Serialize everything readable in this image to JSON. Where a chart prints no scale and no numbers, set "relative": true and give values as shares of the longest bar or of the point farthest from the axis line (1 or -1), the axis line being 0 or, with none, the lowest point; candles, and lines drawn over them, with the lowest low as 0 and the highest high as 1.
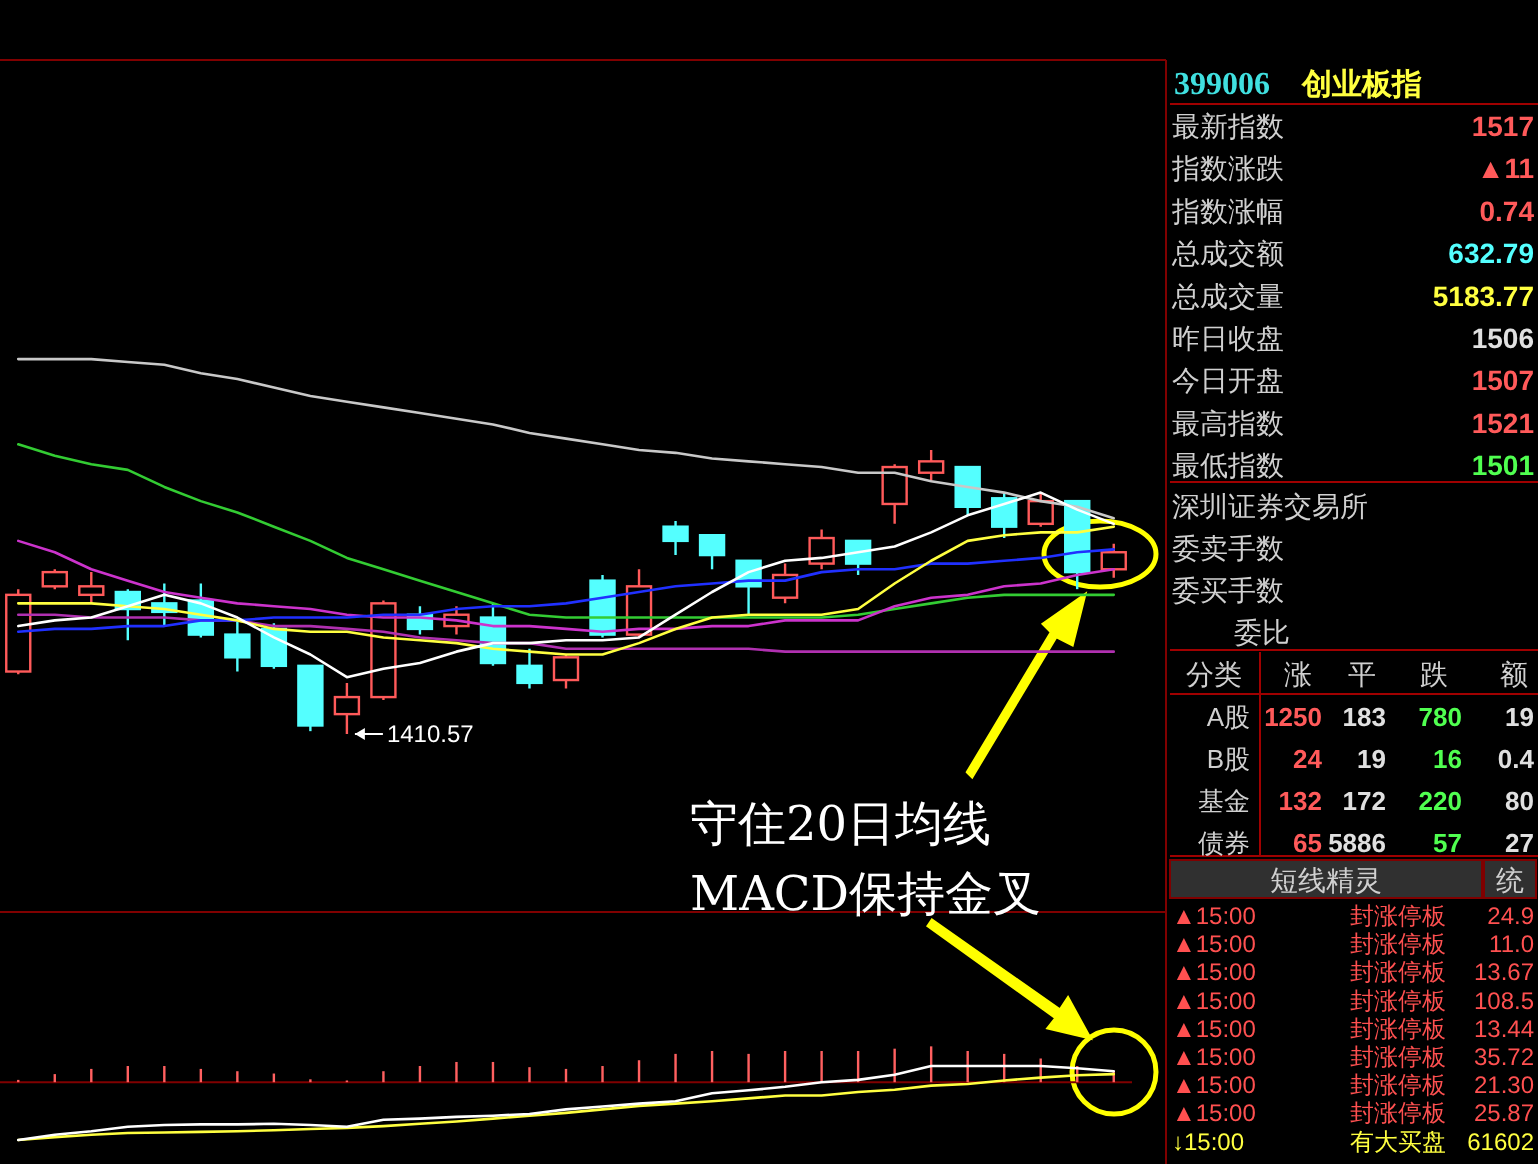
{
  "chart_data": [
    {
      "type": "candlestick",
      "relative": true,
      "categories": [
        null,
        null,
        null,
        null,
        null,
        null,
        null,
        null,
        null,
        null,
        null,
        null,
        null,
        null,
        null,
        null,
        null,
        null,
        null,
        null,
        null,
        null,
        null,
        null,
        null,
        null,
        null,
        null,
        null,
        null,
        null
      ],
      "ohlc": [
        [
          0.22,
          0.51,
          0.21,
          0.49
        ],
        [
          0.52,
          0.58,
          0.51,
          0.57
        ],
        [
          0.49,
          0.57,
          0.46,
          0.52
        ],
        [
          0.5,
          0.51,
          0.33,
          0.44
        ],
        [
          0.46,
          0.53,
          0.38,
          0.43
        ],
        [
          0.47,
          0.53,
          0.34,
          0.35
        ],
        [
          0.35,
          0.4,
          0.22,
          0.27
        ],
        [
          0.37,
          0.39,
          0.23,
          0.24
        ],
        [
          0.24,
          0.24,
          0.01,
          0.03
        ],
        [
          0.07,
          0.18,
          0,
          0.13
        ],
        [
          0.13,
          0.47,
          0.12,
          0.46
        ],
        [
          0.42,
          0.45,
          0.35,
          0.37
        ],
        [
          0.38,
          0.45,
          0.35,
          0.42
        ],
        [
          0.41,
          0.46,
          0.24,
          0.25
        ],
        [
          0.24,
          0.3,
          0.16,
          0.18
        ],
        [
          0.19,
          0.28,
          0.16,
          0.27
        ],
        [
          0.54,
          0.56,
          0.34,
          0.35
        ],
        [
          0.35,
          0.58,
          0.34,
          0.52
        ],
        [
          0.73,
          0.75,
          0.63,
          0.68
        ],
        [
          0.7,
          0.7,
          0.58,
          0.63
        ],
        [
          0.61,
          0.61,
          0.42,
          0.52
        ],
        [
          0.48,
          0.6,
          0.46,
          0.56
        ],
        [
          0.6,
          0.72,
          0.58,
          0.69
        ],
        [
          0.68,
          0.68,
          0.56,
          0.6
        ],
        [
          0.81,
          0.95,
          0.74,
          0.94
        ],
        [
          0.92,
          1,
          0.89,
          0.96
        ],
        [
          0.94,
          0.94,
          0.77,
          0.8
        ],
        [
          0.83,
          0.85,
          0.69,
          0.73
        ],
        [
          0.74,
          0.85,
          0.73,
          0.82
        ],
        [
          0.82,
          0.82,
          0.51,
          0.57
        ],
        [
          0.58,
          0.67,
          0.55,
          0.64
        ]
      ],
      "series": [
        {
          "type": "line",
          "color": "#c8c8c8",
          "values": [
            1.32,
            1.32,
            1.32,
            1.31,
            1.3,
            1.27,
            1.25,
            1.22,
            1.19,
            1.17,
            1.15,
            1.13,
            1.11,
            1.09,
            1.06,
            1.04,
            1.02,
            1.0,
            0.99,
            0.97,
            0.96,
            0.95,
            0.94,
            0.92,
            0.92,
            0.89,
            0.87,
            0.85,
            0.82,
            0.8,
            0.76
          ]
        },
        {
          "type": "line",
          "color": "#33cc33",
          "values": [
            1.02,
            0.98,
            0.95,
            0.93,
            0.87,
            0.82,
            0.78,
            0.73,
            0.68,
            0.62,
            0.58,
            0.54,
            0.5,
            0.46,
            0.42,
            0.41,
            0.41,
            0.41,
            0.41,
            0.41,
            0.41,
            0.41,
            0.41,
            0.42,
            0.44,
            0.46,
            0.48,
            0.49,
            0.49,
            0.49,
            0.49
          ]
        },
        {
          "type": "line",
          "color": "#cc33cc",
          "values": [
            0.68,
            0.64,
            0.58,
            0.54,
            0.5,
            0.48,
            0.46,
            0.45,
            0.44,
            0.42,
            0.41,
            0.41,
            0.4,
            0.38,
            0.38,
            0.37,
            0.36,
            0.37,
            0.37,
            0.38,
            0.38,
            0.4,
            0.4,
            0.4,
            0.45,
            0.48,
            0.49,
            0.52,
            0.53,
            0.56,
            0.58
          ]
        },
        {
          "type": "line",
          "color": "#b030b0",
          "values": [
            0.42,
            0.42,
            0.41,
            0.41,
            0.41,
            0.4,
            0.4,
            0.38,
            0.38,
            0.37,
            0.36,
            0.34,
            0.33,
            0.32,
            0.32,
            0.3,
            0.3,
            0.3,
            0.3,
            0.3,
            0.3,
            0.29,
            0.29,
            0.29,
            0.29,
            0.29,
            0.29,
            0.29,
            0.29,
            0.29,
            0.29
          ]
        },
        {
          "type": "line",
          "color": "#2030ff",
          "values": [
            0.36,
            0.37,
            0.37,
            0.38,
            0.38,
            0.4,
            0.4,
            0.41,
            0.41,
            0.41,
            0.42,
            0.42,
            0.44,
            0.45,
            0.45,
            0.46,
            0.48,
            0.5,
            0.52,
            0.53,
            0.54,
            0.54,
            0.57,
            0.58,
            0.58,
            0.6,
            0.6,
            0.61,
            0.62,
            0.64,
            0.65
          ]
        },
        {
          "type": "line",
          "color": "#ffff40",
          "values": [
            0.46,
            0.46,
            0.46,
            0.45,
            0.44,
            0.42,
            0.4,
            0.37,
            0.36,
            0.36,
            0.34,
            0.33,
            0.32,
            0.3,
            0.29,
            0.28,
            0.28,
            0.32,
            0.37,
            0.41,
            0.42,
            0.42,
            0.42,
            0.44,
            0.53,
            0.61,
            0.68,
            0.7,
            0.71,
            0.71,
            0.73
          ]
        },
        {
          "type": "line",
          "color": "#ffffff",
          "values": [
            0.38,
            0.4,
            0.41,
            0.45,
            0.49,
            0.46,
            0.41,
            0.34,
            0.28,
            0.2,
            0.23,
            0.25,
            0.29,
            0.32,
            0.32,
            0.33,
            0.33,
            0.34,
            0.42,
            0.5,
            0.57,
            0.61,
            0.62,
            0.64,
            0.66,
            0.71,
            0.77,
            0.81,
            0.85,
            0.79,
            0.74
          ]
        }
      ],
      "annotations": [
        "1410.57",
        "守住20日均线"
      ]
    },
    {
      "type": "line",
      "relative": true,
      "categories": [
        null,
        null,
        null,
        null,
        null,
        null,
        null,
        null,
        null,
        null,
        null,
        null,
        null,
        null,
        null,
        null,
        null,
        null,
        null,
        null,
        null,
        null,
        null,
        null,
        null,
        null,
        null,
        null,
        null,
        null,
        null
      ],
      "series": [
        {
          "type": "bar",
          "color": "#ff6060",
          "values": [
            0.04,
            0.14,
            0.23,
            0.28,
            0.28,
            0.23,
            0.19,
            0.15,
            0.05,
            0.03,
            0.19,
            0.28,
            0.35,
            0.35,
            0.26,
            0.23,
            0.28,
            0.38,
            0.49,
            0.54,
            0.49,
            0.54,
            0.54,
            0.54,
            0.58,
            0.62,
            0.54,
            0.49,
            0.41,
            0.28,
            0.19
          ]
        },
        {
          "type": "line",
          "color": "#ffff40",
          "values": [
            -1.0,
            -0.95,
            -0.91,
            -0.88,
            -0.87,
            -0.86,
            -0.85,
            -0.83,
            -0.81,
            -0.79,
            -0.76,
            -0.72,
            -0.68,
            -0.63,
            -0.58,
            -0.53,
            -0.47,
            -0.41,
            -0.37,
            -0.33,
            -0.28,
            -0.23,
            -0.23,
            -0.17,
            -0.13,
            -0.06,
            -0.03,
            0.03,
            0.08,
            0.12,
            0.14
          ]
        },
        {
          "type": "line",
          "color": "#ffffff",
          "values": [
            -1.0,
            -0.91,
            -0.85,
            -0.77,
            -0.74,
            -0.73,
            -0.73,
            -0.72,
            -0.74,
            -0.77,
            -0.65,
            -0.63,
            -0.6,
            -0.58,
            -0.55,
            -0.47,
            -0.42,
            -0.37,
            -0.33,
            -0.19,
            -0.14,
            -0.08,
            0,
            0.04,
            0.13,
            0.28,
            0.28,
            0.28,
            0.28,
            0.24,
            0.19
          ]
        }
      ],
      "ref_lines": [
        {
          "axis": "y",
          "value": 0,
          "color": "#800000"
        }
      ],
      "annotations": [
        "MACD保持金叉"
      ]
    },
    {
      "type": "other",
      "title": "399006",
      "subtitle": "创业板指",
      "categories": [
        "最新指数",
        "指数涨跌",
        "指数涨幅",
        "总成交额",
        "总成交量",
        "昨日收盘",
        "今日开盘",
        "最高指数",
        "最低指数",
        "深圳证券交易所",
        "委卖手数",
        "委买手数",
        "委比"
      ],
      "value_labels": [
        "1517",
        "▲11",
        "0.74",
        "632.79",
        "5183.77",
        "1506",
        "1507",
        "1521",
        "1501",
        null,
        null,
        null,
        null
      ],
      "annotations": [
        "分类",
        "涨",
        "平",
        "跌",
        "额",
        "A股",
        "1250",
        "183",
        "780",
        "19",
        "B股",
        "24",
        "19",
        "16",
        "0.4",
        "基金",
        "132",
        "172",
        "220",
        "80",
        "债券",
        "65",
        "5886",
        "57",
        "27",
        "短线精灵",
        "统",
        "▲15:00",
        "封涨停板",
        "24.9",
        "▲15:00",
        "封涨停板",
        "11.0",
        "▲15:00",
        "封涨停板",
        "13.67",
        "▲15:00",
        "封涨停板",
        "108.5",
        "▲15:00",
        "封涨停板",
        "13.44",
        "▲15:00",
        "封涨停板",
        "35.72",
        "▲15:00",
        "封涨停板",
        "21.30",
        "▲15:00",
        "封涨停板",
        "25.87",
        "↓15:00",
        "有大买盘",
        "61602"
      ]
    }
  ]
}
